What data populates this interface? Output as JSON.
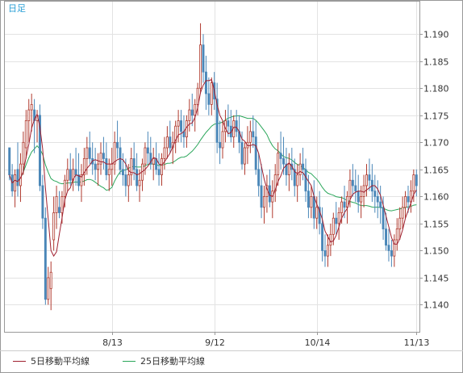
{
  "chart_data": {
    "type": "candlestick",
    "period_label": "日足",
    "colors": {
      "up_body": "#ffffff",
      "up_border": "#b03a2e",
      "down_body": "#4a87b8",
      "down_border": "#4a87b8",
      "ma5": "#a02030",
      "ma25": "#2aa65a",
      "grid": "#e3e3e3",
      "frame": "#999999"
    },
    "y_axis": {
      "min": 1.135,
      "max": 1.196,
      "ticks": [
        "1.190",
        "1.185",
        "1.180",
        "1.175",
        "1.170",
        "1.165",
        "1.160",
        "1.155",
        "1.150",
        "1.145",
        "1.140"
      ]
    },
    "x_ticks": [
      {
        "label": "8/13",
        "index": 37
      },
      {
        "label": "9/12",
        "index": 74
      },
      {
        "label": "10/14",
        "index": 111
      },
      {
        "label": "11/13",
        "index": 147
      }
    ],
    "legend": [
      {
        "label": "5日移動平均線",
        "color": "#a02030"
      },
      {
        "label": "25日移動平均線",
        "color": "#2aa65a"
      }
    ],
    "candles": [
      [
        1.169,
        1.169,
        1.163,
        1.164
      ],
      [
        1.164,
        1.166,
        1.16,
        1.161
      ],
      [
        1.161,
        1.165,
        1.158,
        1.164
      ],
      [
        1.165,
        1.17,
        1.16,
        1.162
      ],
      [
        1.162,
        1.168,
        1.159,
        1.166
      ],
      [
        1.166,
        1.172,
        1.164,
        1.17
      ],
      [
        1.169,
        1.176,
        1.167,
        1.174
      ],
      [
        1.174,
        1.178,
        1.17,
        1.176
      ],
      [
        1.176,
        1.179,
        1.172,
        1.177
      ],
      [
        1.176,
        1.178,
        1.168,
        1.174
      ],
      [
        1.174,
        1.176,
        1.17,
        1.175
      ],
      [
        1.175,
        1.177,
        1.161,
        1.162
      ],
      [
        1.162,
        1.164,
        1.154,
        1.156
      ],
      [
        1.156,
        1.158,
        1.14,
        1.141
      ],
      [
        1.141,
        1.147,
        1.14,
        1.145
      ],
      [
        1.143,
        1.148,
        1.139,
        1.146
      ],
      [
        1.152,
        1.16,
        1.15,
        1.157
      ],
      [
        1.157,
        1.162,
        1.154,
        1.16
      ],
      [
        1.158,
        1.161,
        1.156,
        1.157
      ],
      [
        1.157,
        1.161,
        1.155,
        1.16
      ],
      [
        1.16,
        1.164,
        1.158,
        1.163
      ],
      [
        1.163,
        1.167,
        1.161,
        1.165
      ],
      [
        1.165,
        1.168,
        1.162,
        1.163
      ],
      [
        1.163,
        1.167,
        1.161,
        1.165
      ],
      [
        1.165,
        1.169,
        1.162,
        1.164
      ],
      [
        1.164,
        1.168,
        1.161,
        1.162
      ],
      [
        1.162,
        1.166,
        1.159,
        1.164
      ],
      [
        1.164,
        1.169,
        1.162,
        1.167
      ],
      [
        1.167,
        1.171,
        1.164,
        1.169
      ],
      [
        1.169,
        1.172,
        1.166,
        1.167
      ],
      [
        1.167,
        1.17,
        1.164,
        1.166
      ],
      [
        1.166,
        1.169,
        1.163,
        1.165
      ],
      [
        1.165,
        1.168,
        1.162,
        1.166
      ],
      [
        1.166,
        1.17,
        1.164,
        1.168
      ],
      [
        1.168,
        1.171,
        1.165,
        1.167
      ],
      [
        1.167,
        1.17,
        1.163,
        1.164
      ],
      [
        1.164,
        1.167,
        1.161,
        1.165
      ],
      [
        1.165,
        1.169,
        1.162,
        1.166
      ],
      [
        1.166,
        1.172,
        1.164,
        1.17
      ],
      [
        1.17,
        1.174,
        1.167,
        1.169
      ],
      [
        1.169,
        1.171,
        1.164,
        1.165
      ],
      [
        1.165,
        1.168,
        1.162,
        1.164
      ],
      [
        1.164,
        1.167,
        1.16,
        1.162
      ],
      [
        1.162,
        1.166,
        1.159,
        1.164
      ],
      [
        1.164,
        1.169,
        1.162,
        1.167
      ],
      [
        1.167,
        1.17,
        1.163,
        1.165
      ],
      [
        1.165,
        1.168,
        1.161,
        1.162
      ],
      [
        1.162,
        1.165,
        1.159,
        1.163
      ],
      [
        1.163,
        1.167,
        1.161,
        1.166
      ],
      [
        1.166,
        1.17,
        1.164,
        1.169
      ],
      [
        1.169,
        1.172,
        1.166,
        1.168
      ],
      [
        1.168,
        1.171,
        1.165,
        1.166
      ],
      [
        1.166,
        1.169,
        1.163,
        1.167
      ],
      [
        1.167,
        1.17,
        1.164,
        1.165
      ],
      [
        1.165,
        1.168,
        1.162,
        1.164
      ],
      [
        1.164,
        1.168,
        1.162,
        1.167
      ],
      [
        1.167,
        1.171,
        1.165,
        1.169
      ],
      [
        1.169,
        1.173,
        1.167,
        1.171
      ],
      [
        1.171,
        1.174,
        1.168,
        1.169
      ],
      [
        1.169,
        1.172,
        1.166,
        1.17
      ],
      [
        1.17,
        1.174,
        1.168,
        1.173
      ],
      [
        1.173,
        1.176,
        1.17,
        1.174
      ],
      [
        1.174,
        1.176,
        1.17,
        1.172
      ],
      [
        1.172,
        1.175,
        1.169,
        1.171
      ],
      [
        1.171,
        1.175,
        1.169,
        1.174
      ],
      [
        1.174,
        1.178,
        1.172,
        1.176
      ],
      [
        1.176,
        1.179,
        1.173,
        1.175
      ],
      [
        1.175,
        1.178,
        1.172,
        1.177
      ],
      [
        1.177,
        1.181,
        1.175,
        1.18
      ],
      [
        1.18,
        1.192,
        1.179,
        1.188
      ],
      [
        1.188,
        1.19,
        1.181,
        1.183
      ],
      [
        1.183,
        1.186,
        1.176,
        1.179
      ],
      [
        1.179,
        1.182,
        1.175,
        1.177
      ],
      [
        1.177,
        1.182,
        1.175,
        1.181
      ],
      [
        1.181,
        1.183,
        1.176,
        1.178
      ],
      [
        1.178,
        1.181,
        1.168,
        1.17
      ],
      [
        1.17,
        1.174,
        1.166,
        1.169
      ],
      [
        1.169,
        1.174,
        1.167,
        1.172
      ],
      [
        1.172,
        1.176,
        1.17,
        1.174
      ],
      [
        1.174,
        1.177,
        1.171,
        1.173
      ],
      [
        1.173,
        1.176,
        1.17,
        1.171
      ],
      [
        1.171,
        1.175,
        1.169,
        1.174
      ],
      [
        1.174,
        1.176,
        1.171,
        1.172
      ],
      [
        1.172,
        1.175,
        1.168,
        1.17
      ],
      [
        1.17,
        1.172,
        1.165,
        1.166
      ],
      [
        1.166,
        1.17,
        1.164,
        1.169
      ],
      [
        1.169,
        1.173,
        1.166,
        1.17
      ],
      [
        1.17,
        1.174,
        1.168,
        1.172
      ],
      [
        1.172,
        1.175,
        1.169,
        1.171
      ],
      [
        1.171,
        1.174,
        1.164,
        1.165
      ],
      [
        1.165,
        1.168,
        1.16,
        1.162
      ],
      [
        1.162,
        1.166,
        1.156,
        1.158
      ],
      [
        1.158,
        1.162,
        1.155,
        1.16
      ],
      [
        1.16,
        1.164,
        1.157,
        1.162
      ],
      [
        1.162,
        1.165,
        1.158,
        1.159
      ],
      [
        1.159,
        1.163,
        1.156,
        1.161
      ],
      [
        1.161,
        1.166,
        1.159,
        1.164
      ],
      [
        1.164,
        1.17,
        1.162,
        1.168
      ],
      [
        1.168,
        1.172,
        1.165,
        1.167
      ],
      [
        1.167,
        1.171,
        1.164,
        1.166
      ],
      [
        1.166,
        1.169,
        1.162,
        1.164
      ],
      [
        1.164,
        1.168,
        1.161,
        1.166
      ],
      [
        1.166,
        1.169,
        1.163,
        1.165
      ],
      [
        1.165,
        1.167,
        1.16,
        1.162
      ],
      [
        1.162,
        1.166,
        1.159,
        1.164
      ],
      [
        1.164,
        1.168,
        1.162,
        1.166
      ],
      [
        1.166,
        1.169,
        1.163,
        1.165
      ],
      [
        1.165,
        1.167,
        1.159,
        1.161
      ],
      [
        1.161,
        1.164,
        1.156,
        1.158
      ],
      [
        1.158,
        1.162,
        1.156,
        1.16
      ],
      [
        1.16,
        1.163,
        1.154,
        1.156
      ],
      [
        1.156,
        1.16,
        1.154,
        1.158
      ],
      [
        1.158,
        1.161,
        1.153,
        1.155
      ],
      [
        1.155,
        1.158,
        1.148,
        1.15
      ],
      [
        1.15,
        1.153,
        1.147,
        1.149
      ],
      [
        1.149,
        1.153,
        1.147,
        1.151
      ],
      [
        1.151,
        1.155,
        1.149,
        1.153
      ],
      [
        1.153,
        1.157,
        1.151,
        1.156
      ],
      [
        1.156,
        1.159,
        1.153,
        1.155
      ],
      [
        1.155,
        1.158,
        1.152,
        1.157
      ],
      [
        1.157,
        1.16,
        1.155,
        1.159
      ],
      [
        1.159,
        1.162,
        1.156,
        1.158
      ],
      [
        1.158,
        1.161,
        1.155,
        1.16
      ],
      [
        1.16,
        1.165,
        1.158,
        1.163
      ],
      [
        1.163,
        1.166,
        1.16,
        1.162
      ],
      [
        1.162,
        1.165,
        1.159,
        1.161
      ],
      [
        1.161,
        1.164,
        1.157,
        1.159
      ],
      [
        1.159,
        1.162,
        1.156,
        1.16
      ],
      [
        1.16,
        1.164,
        1.158,
        1.162
      ],
      [
        1.162,
        1.166,
        1.16,
        1.164
      ],
      [
        1.164,
        1.167,
        1.161,
        1.163
      ],
      [
        1.163,
        1.166,
        1.159,
        1.161
      ],
      [
        1.161,
        1.164,
        1.157,
        1.16
      ],
      [
        1.16,
        1.163,
        1.156,
        1.159
      ],
      [
        1.159,
        1.162,
        1.155,
        1.158
      ],
      [
        1.158,
        1.16,
        1.152,
        1.154
      ],
      [
        1.154,
        1.157,
        1.15,
        1.151
      ],
      [
        1.151,
        1.154,
        1.148,
        1.15
      ],
      [
        1.15,
        1.152,
        1.147,
        1.149
      ],
      [
        1.149,
        1.153,
        1.147,
        1.152
      ],
      [
        1.152,
        1.156,
        1.15,
        1.154
      ],
      [
        1.154,
        1.158,
        1.152,
        1.156
      ],
      [
        1.156,
        1.16,
        1.154,
        1.158
      ],
      [
        1.158,
        1.161,
        1.156,
        1.16
      ],
      [
        1.16,
        1.162,
        1.157,
        1.159
      ],
      [
        1.159,
        1.163,
        1.157,
        1.161
      ],
      [
        1.161,
        1.165,
        1.159,
        1.164
      ],
      [
        1.164,
        1.165,
        1.16,
        1.162
      ]
    ]
  }
}
